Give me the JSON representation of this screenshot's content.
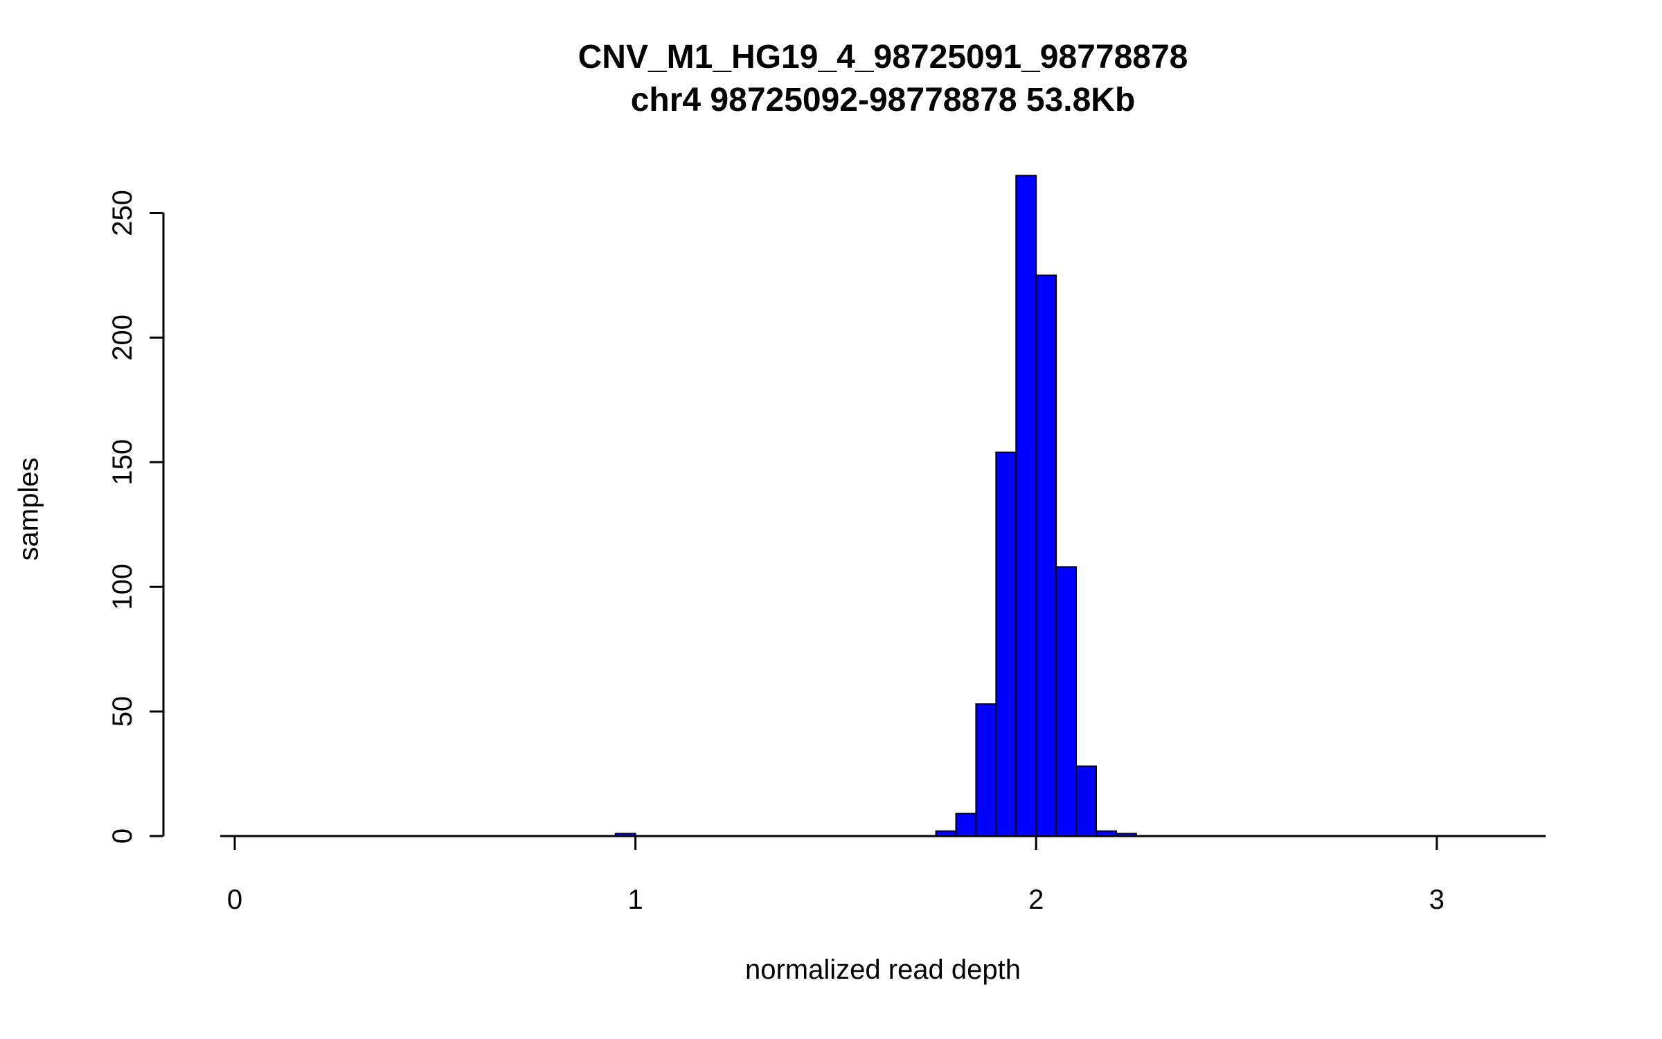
{
  "page": {
    "background": "#FFFFFF"
  },
  "chart_data": {
    "type": "bar",
    "subtype": "histogram",
    "title": "CNV_M1_HG19_4_98725091_98778878",
    "subtitle": "chr4 98725092-98778878 53.8Kb",
    "xlabel": "normalized read depth",
    "ylabel": "samples",
    "x_ticks": [
      0,
      1,
      2,
      3
    ],
    "y_ticks": [
      0,
      50,
      100,
      150,
      200,
      250
    ],
    "xlim": [
      0,
      3.27
    ],
    "ylim": [
      0,
      265
    ],
    "bin_width": 0.05,
    "bar_color": "#0000FF",
    "bar_border_color": "#000000",
    "axis_color": "#000000",
    "grid": false,
    "legend": false,
    "bins": [
      {
        "x": 0.95,
        "count": 1
      },
      {
        "x": 1.75,
        "count": 2
      },
      {
        "x": 1.8,
        "count": 9
      },
      {
        "x": 1.85,
        "count": 53
      },
      {
        "x": 1.9,
        "count": 154
      },
      {
        "x": 1.95,
        "count": 265
      },
      {
        "x": 2.0,
        "count": 225
      },
      {
        "x": 2.05,
        "count": 108
      },
      {
        "x": 2.1,
        "count": 28
      },
      {
        "x": 2.15,
        "count": 2
      },
      {
        "x": 2.2,
        "count": 1
      }
    ]
  }
}
